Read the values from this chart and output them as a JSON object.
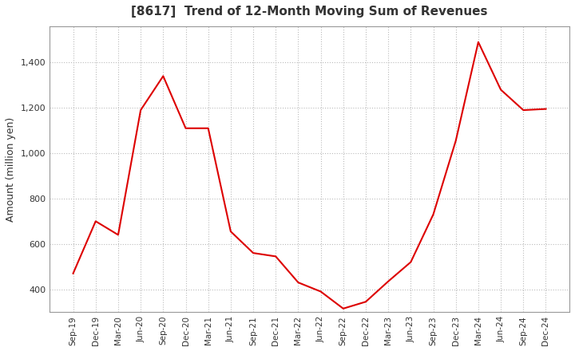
{
  "title": "[8617]  Trend of 12-Month Moving Sum of Revenues",
  "ylabel": "Amount (million yen)",
  "line_color": "#dd0000",
  "background_color": "#ffffff",
  "plot_bg_color": "#ffffff",
  "grid_color": "#bbbbbb",
  "title_color": "#333333",
  "tick_color": "#333333",
  "ylim": [
    300,
    1560
  ],
  "yticks": [
    400,
    600,
    800,
    1000,
    1200,
    1400
  ],
  "ytick_labels": [
    "400",
    "600",
    "800",
    "1,000",
    "1,200",
    "1,400"
  ],
  "x_labels": [
    "Sep-19",
    "Dec-19",
    "Mar-20",
    "Jun-20",
    "Sep-20",
    "Dec-20",
    "Mar-21",
    "Jun-21",
    "Sep-21",
    "Dec-21",
    "Mar-22",
    "Jun-22",
    "Sep-22",
    "Dec-22",
    "Mar-23",
    "Jun-23",
    "Sep-23",
    "Dec-23",
    "Mar-24",
    "Jun-24",
    "Sep-24",
    "Dec-24"
  ],
  "values": [
    470,
    700,
    640,
    1190,
    1340,
    1110,
    1110,
    655,
    560,
    545,
    430,
    390,
    315,
    345,
    435,
    520,
    730,
    1055,
    1490,
    1280,
    1190,
    1195
  ]
}
